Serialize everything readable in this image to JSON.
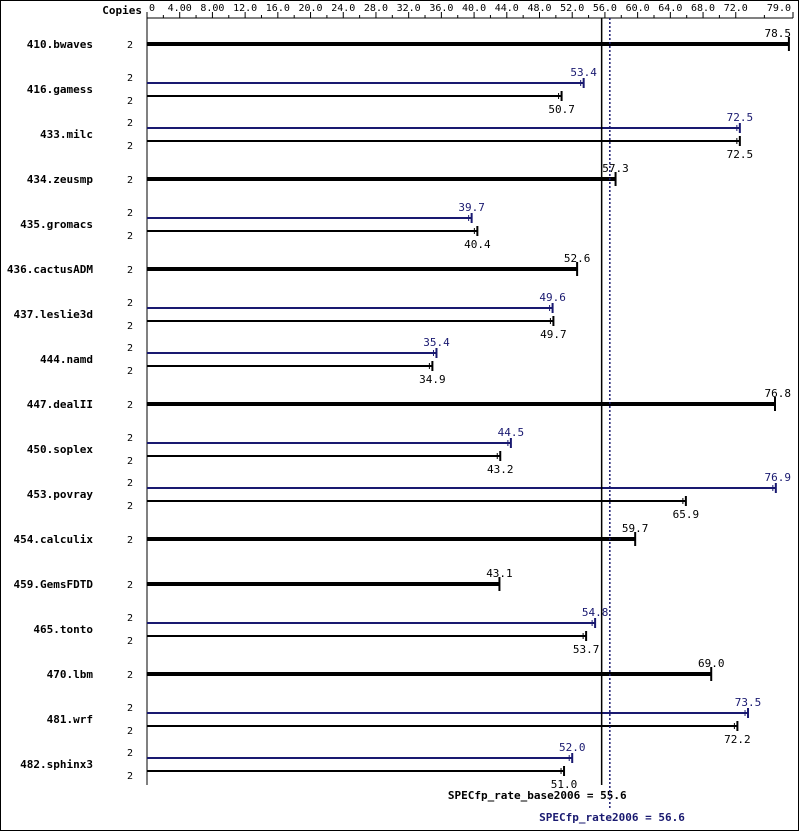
{
  "chart_data": {
    "type": "bar",
    "axis_header": "Copies",
    "x_ticks": [
      "0",
      "4.00",
      "8.00",
      "12.0",
      "16.0",
      "20.0",
      "24.0",
      "28.0",
      "32.0",
      "36.0",
      "40.0",
      "44.0",
      "48.0",
      "52.0",
      "56.0",
      "60.0",
      "64.0",
      "68.0",
      "72.0",
      "79.0"
    ],
    "x_tick_values": [
      0,
      4,
      8,
      12,
      16,
      20,
      24,
      28,
      32,
      36,
      40,
      44,
      48,
      52,
      56,
      60,
      64,
      68,
      72,
      79
    ],
    "xlim": [
      0,
      79
    ],
    "colors": {
      "base": "#000000",
      "peak": "#191970"
    },
    "benchmarks": [
      {
        "name": "410.bwaves",
        "base_copies": "2",
        "base": 78.5,
        "base_label": "78.5"
      },
      {
        "name": "416.gamess",
        "peak_copies": "2",
        "peak": 53.4,
        "peak_label": "53.4",
        "base_copies": "2",
        "base": 50.7,
        "base_label": "50.7"
      },
      {
        "name": "433.milc",
        "peak_copies": "2",
        "peak": 72.5,
        "peak_label": "72.5",
        "base_copies": "2",
        "base": 72.5,
        "base_label": "72.5"
      },
      {
        "name": "434.zeusmp",
        "base_copies": "2",
        "base": 57.3,
        "base_label": "57.3"
      },
      {
        "name": "435.gromacs",
        "peak_copies": "2",
        "peak": 39.7,
        "peak_label": "39.7",
        "base_copies": "2",
        "base": 40.4,
        "base_label": "40.4"
      },
      {
        "name": "436.cactusADM",
        "base_copies": "2",
        "base": 52.6,
        "base_label": "52.6"
      },
      {
        "name": "437.leslie3d",
        "peak_copies": "2",
        "peak": 49.6,
        "peak_label": "49.6",
        "base_copies": "2",
        "base": 49.7,
        "base_label": "49.7"
      },
      {
        "name": "444.namd",
        "peak_copies": "2",
        "peak": 35.4,
        "peak_label": "35.4",
        "base_copies": "2",
        "base": 34.9,
        "base_label": "34.9"
      },
      {
        "name": "447.dealII",
        "base_copies": "2",
        "base": 76.8,
        "base_label": "76.8"
      },
      {
        "name": "450.soplex",
        "peak_copies": "2",
        "peak": 44.5,
        "peak_label": "44.5",
        "base_copies": "2",
        "base": 43.2,
        "base_label": "43.2"
      },
      {
        "name": "453.povray",
        "peak_copies": "2",
        "peak": 76.9,
        "peak_label": "76.9",
        "base_copies": "2",
        "base": 65.9,
        "base_label": "65.9"
      },
      {
        "name": "454.calculix",
        "base_copies": "2",
        "base": 59.7,
        "base_label": "59.7"
      },
      {
        "name": "459.GemsFDTD",
        "base_copies": "2",
        "base": 43.1,
        "base_label": "43.1"
      },
      {
        "name": "465.tonto",
        "peak_copies": "2",
        "peak": 54.8,
        "peak_label": "54.8",
        "base_copies": "2",
        "base": 53.7,
        "base_label": "53.7"
      },
      {
        "name": "470.lbm",
        "base_copies": "2",
        "base": 69.0,
        "base_label": "69.0"
      },
      {
        "name": "481.wrf",
        "peak_copies": "2",
        "peak": 73.5,
        "peak_label": "73.5",
        "base_copies": "2",
        "base": 72.2,
        "base_label": "72.2"
      },
      {
        "name": "482.sphinx3",
        "peak_copies": "2",
        "peak": 52.0,
        "peak_label": "52.0",
        "base_copies": "2",
        "base": 51.0,
        "base_label": "51.0"
      }
    ],
    "reference_lines": [
      {
        "name": "base",
        "label": "SPECfp_rate_base2006 = 55.6",
        "value": 55.6,
        "style": "solid"
      },
      {
        "name": "peak",
        "label": "SPECfp_rate2006 = 56.6",
        "value": 56.6,
        "style": "dotted"
      }
    ],
    "grid": false,
    "legend": "none"
  }
}
